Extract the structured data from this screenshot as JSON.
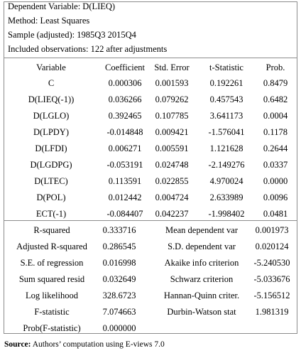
{
  "header": {
    "dependent": "Dependent Variable: D(LIEQ)",
    "method": "Method: Least Squares",
    "sample": "Sample (adjusted): 1985Q3 2015Q4",
    "observations": "Included observations: 122 after adjustments"
  },
  "coef_table": {
    "columns": [
      "Variable",
      "Coefficient",
      "Std. Error",
      "t-Statistic",
      "Prob."
    ],
    "rows": [
      [
        "C",
        "0.000306",
        "0.001593",
        "0.192261",
        "0.8479"
      ],
      [
        "D(LIEQ(-1))",
        "0.036266",
        "0.079262",
        "0.457543",
        "0.6482"
      ],
      [
        "D(LGLO)",
        "0.392465",
        "0.107785",
        "3.641173",
        "0.0004"
      ],
      [
        "D(LPDY)",
        "-0.014848",
        "0.009421",
        "-1.576041",
        "0.1178"
      ],
      [
        "D(LFDI)",
        "0.006271",
        "0.005591",
        "1.121628",
        "0.2644"
      ],
      [
        "D(LGDPG)",
        "-0.053191",
        "0.024748",
        "-2.149276",
        "0.0337"
      ],
      [
        "D(LTEC)",
        "0.113591",
        "0.022855",
        "4.970024",
        "0.0000"
      ],
      [
        "D(POL)",
        "0.012442",
        "0.004724",
        "2.633989",
        "0.0096"
      ],
      [
        "ECT(-1)",
        "-0.084407",
        "0.042237",
        "-1.998402",
        "0.0481"
      ]
    ]
  },
  "stats": [
    [
      "R-squared",
      "0.333716",
      "Mean dependent var",
      "0.001973"
    ],
    [
      "Adjusted R-squared",
      "0.286545",
      "S.D. dependent var",
      "0.020124"
    ],
    [
      "S.E. of regression",
      "0.016998",
      "Akaike info criterion",
      "-5.240530"
    ],
    [
      "Sum squared resid",
      "0.032649",
      "Schwarz criterion",
      "-5.033676"
    ],
    [
      "Log likelihood",
      "328.6723",
      "Hannan-Quinn criter.",
      "-5.156512"
    ],
    [
      "F-statistic",
      "7.074663",
      "Durbin-Watson stat",
      "1.981319"
    ],
    [
      "Prob(F-statistic)",
      "0.000000",
      "",
      ""
    ]
  ],
  "source": {
    "label": "Source:",
    "text": " Authors’ computation using E-views 7.0"
  }
}
